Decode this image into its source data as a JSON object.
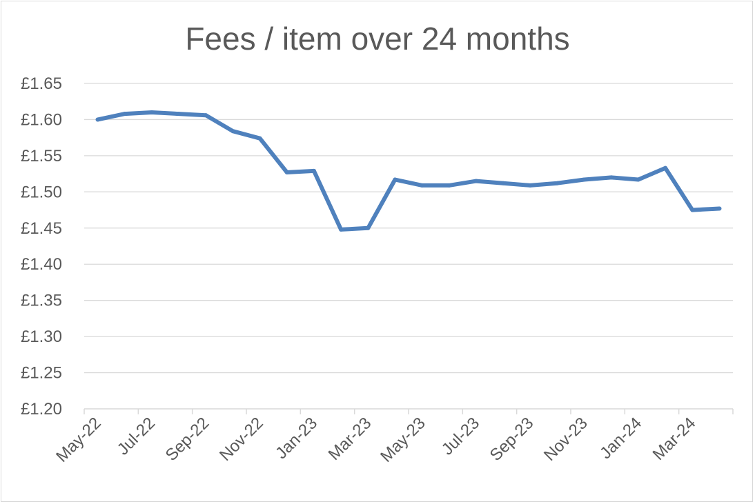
{
  "chart_data": {
    "type": "line",
    "title": "Fees / item over 24 months",
    "xlabel": "",
    "ylabel": "",
    "x": [
      "May-22",
      "Jun-22",
      "Jul-22",
      "Aug-22",
      "Sep-22",
      "Oct-22",
      "Nov-22",
      "Dec-22",
      "Jan-23",
      "Feb-23",
      "Mar-23",
      "Apr-23",
      "May-23",
      "Jun-23",
      "Jul-23",
      "Aug-23",
      "Sep-23",
      "Oct-23",
      "Nov-23",
      "Dec-23",
      "Jan-24",
      "Feb-24",
      "Mar-24",
      "Apr-24"
    ],
    "x_tick_labels": [
      "May-22",
      "Jul-22",
      "Sep-22",
      "Nov-22",
      "Jan-23",
      "Mar-23",
      "May-23",
      "Jul-23",
      "Sep-23",
      "Nov-23",
      "Jan-24",
      "Mar-24"
    ],
    "series": [
      {
        "values": [
          1.6,
          1.608,
          1.61,
          1.608,
          1.606,
          1.584,
          1.574,
          1.527,
          1.529,
          1.448,
          1.45,
          1.517,
          1.509,
          1.509,
          1.515,
          1.512,
          1.509,
          1.512,
          1.517,
          1.52,
          1.517,
          1.533,
          1.475,
          1.477
        ],
        "color": "#4f81bd"
      }
    ],
    "ylim": [
      1.2,
      1.65
    ],
    "y_ticks": [
      "£1.20",
      "£1.25",
      "£1.30",
      "£1.35",
      "£1.40",
      "£1.45",
      "£1.50",
      "£1.55",
      "£1.60",
      "£1.65"
    ],
    "grid": true,
    "legend": "none",
    "colors": {
      "grid": "#d9d9d9",
      "text": "#595959",
      "line": "#4f81bd"
    }
  }
}
